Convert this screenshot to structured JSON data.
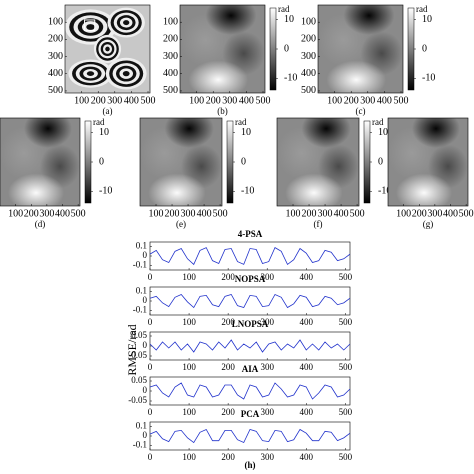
{
  "chart_data": [
    {
      "type": "image",
      "pattern": "fringes",
      "caption": "(a)",
      "xlim": [
        0,
        512
      ],
      "ylim": [
        0,
        512
      ],
      "xticks": [
        100,
        200,
        300,
        400,
        500
      ],
      "yticks": [
        100,
        200,
        300,
        400,
        500
      ]
    },
    {
      "type": "image",
      "pattern": "phase",
      "caption": "(b)",
      "xlim": [
        0,
        512
      ],
      "ylim": [
        0,
        512
      ],
      "xticks": [
        100,
        200,
        300,
        400,
        500
      ],
      "yticks": [
        100,
        200,
        300,
        400,
        500
      ],
      "colorbar": {
        "label": "rad",
        "lim": [
          -14,
          14
        ],
        "ticks": [
          10,
          0,
          -10
        ]
      }
    },
    {
      "type": "image",
      "pattern": "phase",
      "caption": "(c)",
      "xlim": [
        0,
        512
      ],
      "ylim": [
        0,
        512
      ],
      "xticks": [
        100,
        200,
        300,
        400,
        500
      ],
      "yticks": [
        100,
        200,
        300,
        400,
        500
      ],
      "colorbar": {
        "label": "rad",
        "lim": [
          -14,
          14
        ],
        "ticks": [
          10,
          0,
          -10
        ]
      }
    },
    {
      "type": "image",
      "pattern": "phase",
      "caption": "(d)",
      "xlim": [
        0,
        512
      ],
      "ylim": [
        0,
        512
      ],
      "xticks": [
        100,
        200,
        300,
        400,
        500
      ],
      "colorbar": {
        "label": "rad",
        "lim": [
          -14,
          14
        ],
        "ticks": [
          10,
          0,
          -10
        ]
      }
    },
    {
      "type": "image",
      "pattern": "phase",
      "caption": "(e)",
      "xlim": [
        0,
        512
      ],
      "ylim": [
        0,
        512
      ],
      "xticks": [
        100,
        200,
        300,
        400,
        500
      ],
      "colorbar": {
        "label": "rad",
        "lim": [
          -14,
          14
        ],
        "ticks": [
          10,
          0,
          -10
        ]
      }
    },
    {
      "type": "image",
      "pattern": "phase",
      "caption": "(f)",
      "xlim": [
        0,
        512
      ],
      "ylim": [
        0,
        512
      ],
      "xticks": [
        100,
        200,
        300,
        400,
        500
      ],
      "colorbar": {
        "label": "rad",
        "lim": [
          -14,
          14
        ],
        "ticks": [
          10,
          0,
          -10
        ]
      }
    },
    {
      "type": "image",
      "pattern": "phase",
      "caption": "(g)",
      "xlim": [
        0,
        512
      ],
      "ylim": [
        0,
        512
      ],
      "xticks": [
        100,
        200,
        300,
        400,
        500
      ]
    },
    {
      "type": "line",
      "caption": "(h)",
      "ylabel": "RMSE/rad",
      "color": "#2233cc",
      "x": [
        0,
        16,
        32,
        48,
        64,
        80,
        96,
        112,
        128,
        144,
        160,
        176,
        192,
        208,
        224,
        240,
        256,
        272,
        288,
        304,
        320,
        336,
        352,
        368,
        384,
        400,
        416,
        432,
        448,
        464,
        480,
        496,
        512
      ],
      "xlim": [
        0,
        512
      ],
      "xticks": [
        0,
        100,
        200,
        300,
        400,
        500
      ],
      "subplots": [
        {
          "title": "4-PSA",
          "ylim": [
            -0.15,
            0.15
          ],
          "yticks": [
            0.1,
            0,
            -0.1
          ],
          "values": [
            0.02,
            0.06,
            -0.04,
            -0.07,
            0.05,
            0.08,
            -0.03,
            -0.09,
            0.06,
            0.09,
            -0.05,
            -0.08,
            0.07,
            0.08,
            -0.06,
            -0.09,
            0.08,
            0.07,
            -0.08,
            -0.06,
            0.09,
            0.05,
            -0.09,
            -0.04,
            0.08,
            0.03,
            -0.07,
            -0.05,
            0.06,
            0.04,
            -0.05,
            -0.03,
            0.02
          ]
        },
        {
          "title": "NOPSA",
          "ylim": [
            -0.15,
            0.15
          ],
          "yticks": [
            0.1,
            0,
            -0.1
          ],
          "values": [
            0.03,
            0.05,
            -0.02,
            -0.06,
            0.04,
            0.07,
            -0.01,
            -0.07,
            0.05,
            0.06,
            -0.04,
            -0.06,
            0.05,
            0.07,
            -0.05,
            -0.07,
            0.06,
            0.05,
            -0.06,
            -0.05,
            0.07,
            0.04,
            -0.07,
            -0.03,
            0.06,
            0.04,
            -0.06,
            -0.04,
            0.05,
            0.03,
            -0.04,
            -0.02,
            0.03
          ]
        },
        {
          "title": "LNOPSA",
          "ylim": [
            -0.07,
            0.07
          ],
          "yticks": [
            0.05,
            0,
            -0.05
          ],
          "values": [
            0.01,
            -0.02,
            0.02,
            -0.01,
            0.02,
            -0.02,
            0.01,
            -0.03,
            0.02,
            0.01,
            -0.02,
            0.02,
            -0.01,
            0.03,
            -0.02,
            0.01,
            -0.01,
            0.02,
            -0.03,
            0.01,
            0.02,
            -0.02,
            0.01,
            -0.01,
            0.03,
            -0.02,
            0.01,
            -0.02,
            0.02,
            -0.01,
            0.01,
            -0.02,
            0.01
          ]
        },
        {
          "title": "AIA",
          "ylim": [
            -0.07,
            0.07
          ],
          "yticks": [
            0.05,
            0,
            -0.05
          ],
          "values": [
            0.02,
            0.03,
            -0.01,
            -0.03,
            0.02,
            0.04,
            -0.02,
            -0.03,
            0.03,
            0.02,
            -0.03,
            -0.02,
            0.03,
            0.03,
            -0.02,
            -0.04,
            0.03,
            0.02,
            -0.03,
            -0.02,
            0.04,
            0.01,
            -0.03,
            -0.02,
            0.03,
            0.02,
            -0.04,
            -0.01,
            0.03,
            0.02,
            -0.03,
            -0.02,
            0.01
          ]
        },
        {
          "title": "PCA",
          "ylim": [
            -0.15,
            0.15
          ],
          "yticks": [
            0.1,
            0,
            -0.1
          ],
          "values": [
            0.02,
            0.05,
            -0.03,
            -0.06,
            0.05,
            0.06,
            -0.02,
            -0.07,
            0.04,
            0.07,
            -0.05,
            -0.05,
            0.06,
            0.06,
            -0.04,
            -0.07,
            0.07,
            0.05,
            -0.05,
            -0.06,
            0.06,
            0.05,
            -0.06,
            -0.04,
            0.07,
            0.03,
            -0.05,
            -0.05,
            0.05,
            0.04,
            -0.05,
            -0.02,
            0.03
          ]
        }
      ]
    }
  ]
}
